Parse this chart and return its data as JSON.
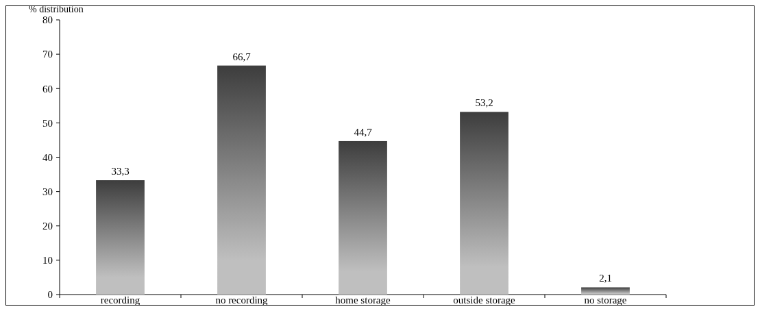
{
  "chart_data": {
    "type": "bar",
    "ylabel": "% distribution",
    "categories": [
      "recording",
      "no recording",
      "home storage",
      "outside storage",
      "no storage"
    ],
    "values": [
      33.3,
      66.7,
      44.7,
      53.2,
      2.1
    ],
    "value_labels": [
      "33,3",
      "66,7",
      "44,7",
      "53,2",
      "2,1"
    ],
    "color": "#bfbfbf",
    "ylim": [
      0,
      80
    ],
    "yticks": [
      0,
      10,
      20,
      30,
      40,
      50,
      60,
      70,
      80
    ],
    "grid": false
  }
}
